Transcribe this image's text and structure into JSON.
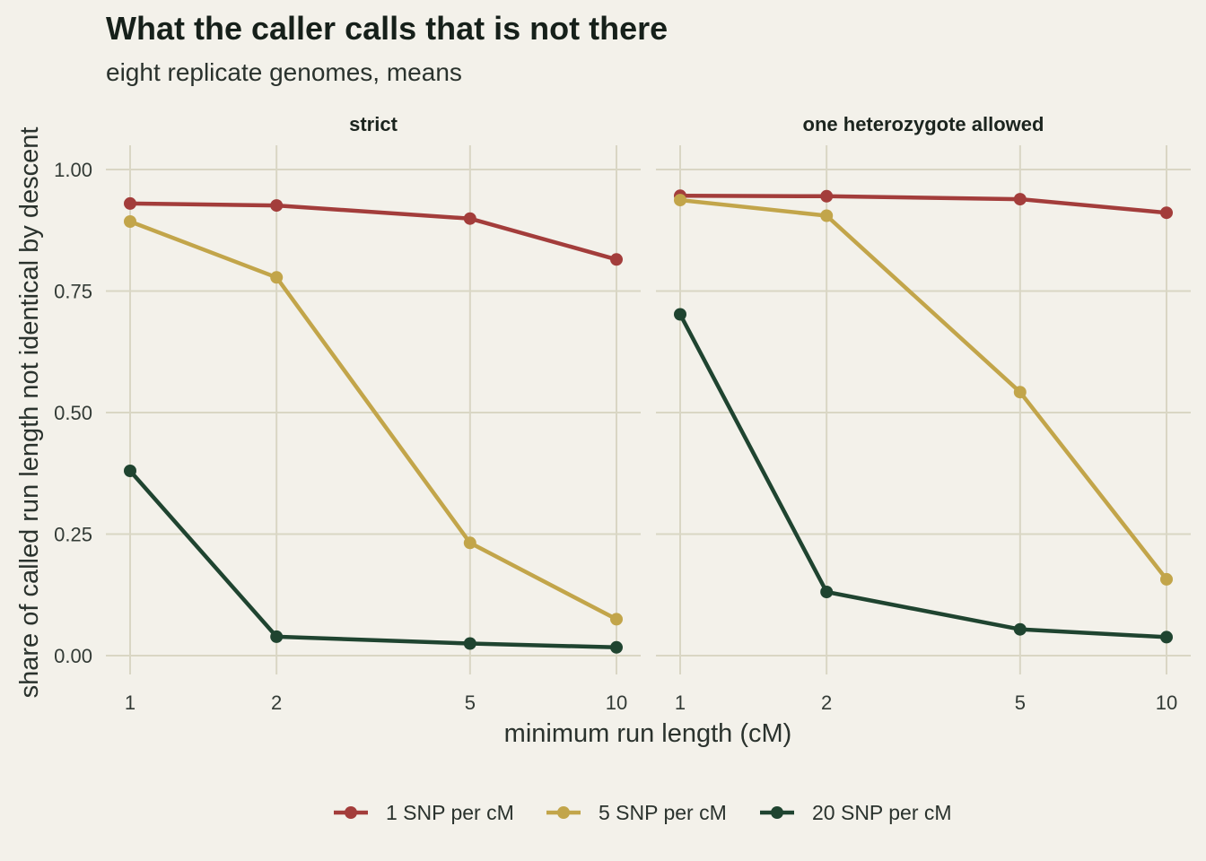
{
  "chart_data": {
    "type": "line",
    "title": "What the caller calls that is not there",
    "subtitle": "eight replicate genomes, means",
    "xlabel": "minimum run length (cM)",
    "ylabel": "share of called run length not identical by descent",
    "x_scale": "log",
    "x_ticks": [
      1,
      2,
      5,
      10
    ],
    "x_tick_labels": [
      "1",
      "2",
      "5",
      "10"
    ],
    "ylim": [
      0,
      1
    ],
    "y_ticks": [
      0,
      0.25,
      0.5,
      0.75,
      1.0
    ],
    "y_tick_labels": [
      "0.00",
      "0.25",
      "0.50",
      "0.75",
      "1.00"
    ],
    "grid": true,
    "legend_position": "bottom",
    "series_meta": [
      {
        "name": "1 SNP per cM",
        "color": "#a33d3b"
      },
      {
        "name": "5 SNP per cM",
        "color": "#c2a54a"
      },
      {
        "name": "20 SNP per cM",
        "color": "#1f4430"
      }
    ],
    "panels": [
      {
        "label": "strict",
        "x": [
          1,
          2,
          5,
          10
        ],
        "series": [
          {
            "name": "1 SNP per cM",
            "values": [
              0.93,
              0.926,
              0.899,
              0.815
            ]
          },
          {
            "name": "5 SNP per cM",
            "values": [
              0.893,
              0.778,
              0.232,
              0.075
            ]
          },
          {
            "name": "20 SNP per cM",
            "values": [
              0.38,
              0.039,
              0.025,
              0.017
            ]
          }
        ]
      },
      {
        "label": "one heterozygote allowed",
        "x": [
          1,
          2,
          5,
          10
        ],
        "series": [
          {
            "name": "1 SNP per cM",
            "values": [
              0.946,
              0.945,
              0.939,
              0.911
            ]
          },
          {
            "name": "5 SNP per cM",
            "values": [
              0.937,
              0.905,
              0.542,
              0.157
            ]
          },
          {
            "name": "20 SNP per cM",
            "values": [
              0.702,
              0.131,
              0.054,
              0.038
            ]
          }
        ]
      }
    ]
  }
}
